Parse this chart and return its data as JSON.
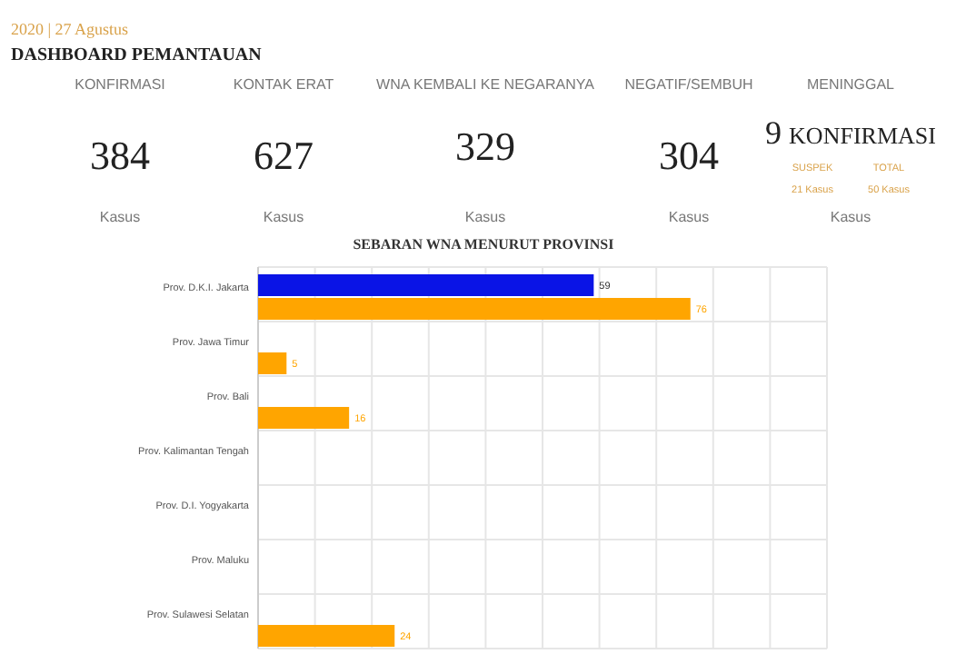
{
  "chart_data": [
    {
      "type": "other",
      "subtitle": "2020 | 27 Agustus",
      "title": "DASHBOARD PEMANTAUAN",
      "categories": [
        "KONFIRMASI",
        "KONTAK ERAT",
        "WNA KEMBALI KE NEGARANYA",
        "NEGATIF/SEMBUH",
        "MENINGGAL"
      ],
      "values": [
        384,
        627,
        329,
        304,
        9
      ],
      "data_labels": true,
      "xlabel": "Kasus",
      "annotations": [
        "KONFIRMASI",
        "SUSPEK",
        "TOTAL",
        "21 Kasus",
        "50 Kasus"
      ]
    },
    {
      "type": "bar",
      "orientation": "horizontal",
      "title": "SEBARAN WNA MENURUT PROVINSI",
      "categories": [
        "Prov. D.K.I. Jakarta",
        "Prov. Jawa Timur",
        "Prov. Bali",
        "Prov. Kalimantan Tengah",
        "Prov. D.I. Yogyakarta",
        "Prov. Maluku",
        "Prov. Sulawesi Selatan"
      ],
      "series": [
        {
          "color": "#0a14e6",
          "values": [
            59,
            null,
            null,
            null,
            null,
            null,
            null
          ]
        },
        {
          "color": "#ffa500",
          "values": [
            76,
            5,
            16,
            null,
            null,
            null,
            24
          ]
        }
      ],
      "xlim": [
        0,
        100
      ],
      "xticks": [
        {
          "value": 0,
          "label": null
        },
        {
          "value": 10,
          "label": null
        },
        {
          "value": 20,
          "label": null
        },
        {
          "value": 30,
          "label": null
        },
        {
          "value": 40,
          "label": null
        },
        {
          "value": 50,
          "label": null
        },
        {
          "value": 60,
          "label": null
        },
        {
          "value": 70,
          "label": null
        },
        {
          "value": 80,
          "label": null
        },
        {
          "value": 90,
          "label": null
        },
        {
          "value": 100,
          "label": null
        }
      ],
      "tick_labels": "y",
      "grid": true,
      "data_labels": true
    }
  ]
}
